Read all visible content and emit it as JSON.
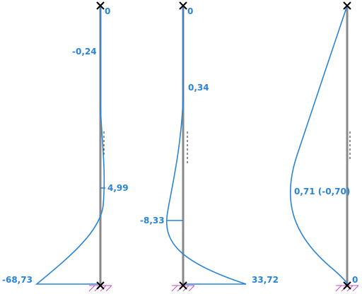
{
  "diagrams": [
    {
      "labels": {
        "top": "0",
        "upper": "-0,24",
        "middle": "4,99",
        "bottom": "-68,73"
      }
    },
    {
      "labels": {
        "top": "0",
        "upper": "0,34",
        "middle": "-8,33",
        "bottom": "33,72"
      }
    },
    {
      "labels": {
        "middle": "0,71 (-0,70)",
        "bottom": "0"
      }
    }
  ],
  "colors": {
    "curve": "#2a84d6",
    "column": "#888888",
    "hatch": "#c050c0",
    "node": "#000000"
  }
}
